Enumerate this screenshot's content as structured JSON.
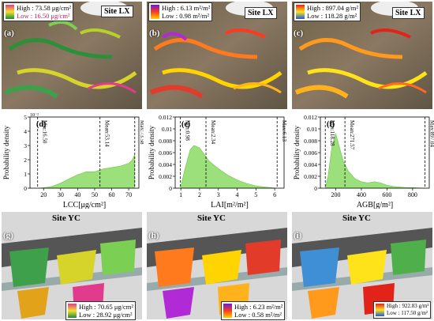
{
  "top_row": [
    {
      "label": "(a)",
      "site": "Site LX",
      "high": "High : 73.58 μg/cm²",
      "low": "Low : 16.50 μg/cm²",
      "ramp": [
        "#1c8a3c",
        "#f2e22a",
        "#e23b8b"
      ]
    },
    {
      "label": "(b)",
      "site": "Site LX",
      "high": "High : 6.13 m²/m²",
      "low": "Low : 0.98 m²/m²",
      "ramp": [
        "#ffd400",
        "#ff3a1c",
        "#6a1bd6"
      ]
    },
    {
      "label": "(c)",
      "site": "Site LX",
      "high": "High : 897.04 g/m²",
      "low": "Low : 118.28 g/m²",
      "ramp": [
        "#1c5ad6",
        "#ffe31a",
        "#e2231a"
      ]
    }
  ],
  "bottom_row": [
    {
      "label": "(g)",
      "site": "Site YC",
      "high": "High : 70.65 μg/cm²",
      "low": "Low : 28.92 μg/cm²",
      "ramp": [
        "#1c8a3c",
        "#f2e22a",
        "#e23b8b"
      ]
    },
    {
      "label": "(h)",
      "site": "Site YC",
      "high": "High : 6.23 m²/m²",
      "low": "Low : 0.58 m²/m²",
      "ramp": [
        "#ffd400",
        "#ff3a1c",
        "#6a1bd6"
      ]
    },
    {
      "label": "(i)",
      "site": "Site YC",
      "high": "High : 922.83 g/m²",
      "low": "Low : 117.50 g/m²",
      "ramp": [
        "#1c5ad6",
        "#ffe31a",
        "#e2231a"
      ]
    }
  ],
  "chart_data": [
    {
      "type": "area",
      "panel": "(d)",
      "color": "#9be07a",
      "xlabel": "LCC[μg/cm²]",
      "ylabel": "Probability density",
      "xlim": [
        12,
        76
      ],
      "ylim": [
        0,
        0.05
      ],
      "y_multiplier": "10⁻²",
      "xticks": [
        20,
        30,
        40,
        50,
        60,
        70
      ],
      "yticks": [
        0,
        1,
        2,
        3,
        4,
        5
      ],
      "vlines": [
        {
          "x": 16.5,
          "label": "Min:16.50"
        },
        {
          "x": 53.14,
          "label": "Mean:53.14"
        },
        {
          "x": 73.58,
          "label": "Max:73.58"
        }
      ],
      "x": [
        16.5,
        20,
        25,
        30,
        35,
        40,
        45,
        50,
        55,
        60,
        65,
        70,
        72,
        73.5
      ],
      "y": [
        0.0,
        0.0003,
        0.0012,
        0.0035,
        0.0065,
        0.0095,
        0.0115,
        0.0115,
        0.0135,
        0.0145,
        0.0155,
        0.0175,
        0.0195,
        0.0235
      ]
    },
    {
      "type": "area",
      "panel": "(e)",
      "color": "#9be07a",
      "xlabel": "LAI[m²/m²]",
      "ylabel": "Probability density",
      "xlim": [
        0.7,
        6.5
      ],
      "ylim": [
        0,
        0.012
      ],
      "xticks": [
        1,
        2,
        3,
        4,
        5,
        6
      ],
      "yticks": [
        0,
        0.002,
        0.004,
        0.006,
        0.008,
        0.01,
        0.012
      ],
      "vlines": [
        {
          "x": 0.98,
          "label": "Min:0.98"
        },
        {
          "x": 2.34,
          "label": "Mean:2.34"
        },
        {
          "x": 6.13,
          "label": "Max:6.13"
        }
      ],
      "x": [
        0.98,
        1.2,
        1.5,
        1.7,
        2.0,
        2.3,
        2.5,
        2.8,
        3.0,
        3.5,
        4.0,
        4.5,
        5.0,
        5.5,
        6.1
      ],
      "y": [
        0.0,
        0.003,
        0.0065,
        0.0072,
        0.0068,
        0.0055,
        0.0046,
        0.0038,
        0.0033,
        0.0022,
        0.0014,
        0.0008,
        0.0004,
        0.0002,
        0.0
      ]
    },
    {
      "type": "area",
      "panel": "(f)",
      "color": "#9be07a",
      "xlabel": "AGB[g/m²]",
      "ylabel": "Probability density",
      "xlim": [
        80,
        930
      ],
      "ylim": [
        0,
        0.012
      ],
      "xticks": [
        200,
        400,
        600,
        800
      ],
      "yticks": [
        0,
        0.002,
        0.004,
        0.006,
        0.008,
        0.01,
        0.012
      ],
      "vlines": [
        {
          "x": 118.28,
          "label": "Min:118.28"
        },
        {
          "x": 271.57,
          "label": "Mean:271.57"
        },
        {
          "x": 897.04,
          "label": "Max:897.04"
        }
      ],
      "x": [
        118,
        140,
        170,
        200,
        230,
        260,
        300,
        350,
        400,
        450,
        500,
        550,
        600,
        650,
        700,
        750,
        800,
        850,
        897
      ],
      "y": [
        0.0,
        0.002,
        0.007,
        0.0092,
        0.0068,
        0.0045,
        0.0028,
        0.0016,
        0.0011,
        0.0009,
        0.0011,
        0.0009,
        0.0005,
        0.0003,
        0.0002,
        0.0001,
        0.0001,
        5e-05,
        0.0
      ]
    }
  ]
}
